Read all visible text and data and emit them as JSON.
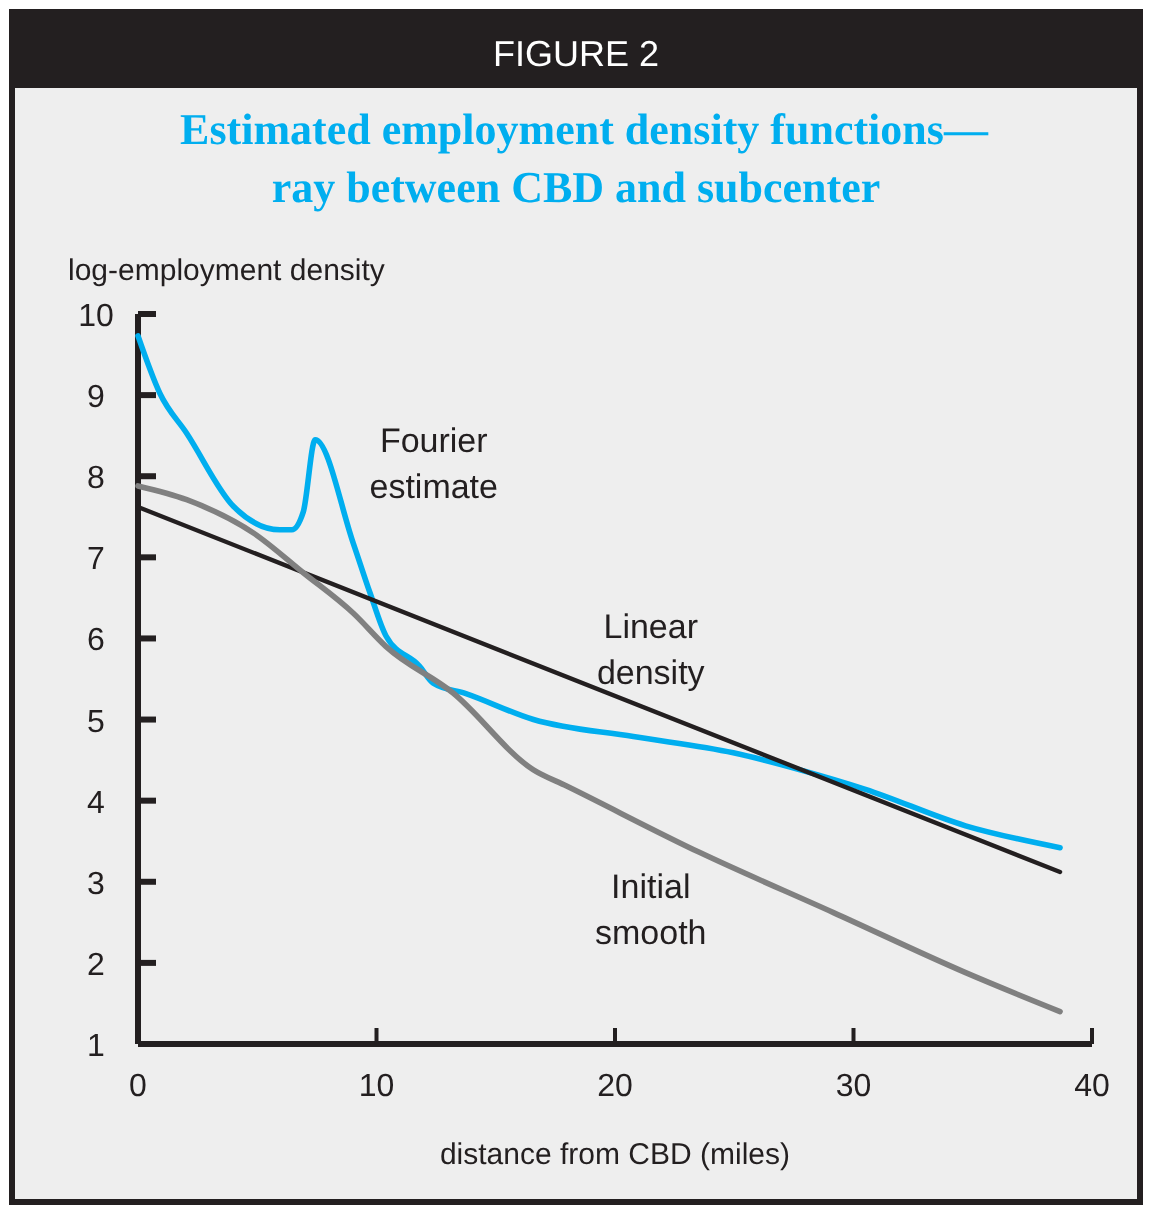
{
  "chart_data": {
    "type": "line",
    "title": "Estimated employment density functions—ray between CBD and subcenter",
    "annotations": [
      "FIGURE 2"
    ],
    "xlabel": "distance from CBD (miles)",
    "ylabel": "log-employment density",
    "xlim": [
      0,
      40
    ],
    "xticks": [
      0,
      10,
      20,
      30,
      40
    ],
    "ylim": [
      1,
      10
    ],
    "yticks": [
      1,
      2,
      3,
      4,
      5,
      6,
      7,
      8,
      9,
      10
    ],
    "grid": false,
    "legend": false,
    "line_style": "solid",
    "marker": "none",
    "series": [
      {
        "name": "Fourier estimate",
        "color": "#00aeef",
        "x": [
          0,
          0.92,
          2.04,
          4.0,
          5.95,
          6.45,
          6.93,
          7.43,
          9.03,
          9.73,
          10.4,
          11.8,
          12.38,
          13.75,
          16.58,
          20.77,
          24.96,
          27.76,
          30.5,
          34.7,
          38.66
        ],
        "values": [
          9.73,
          9.02,
          8.53,
          7.63,
          7.34,
          7.34,
          7.56,
          8.45,
          7.17,
          6.56,
          6.03,
          5.66,
          5.45,
          5.32,
          5.0,
          4.79,
          4.59,
          4.38,
          4.14,
          3.69,
          3.42
        ]
      },
      {
        "name": "Linear density",
        "color": "#231f20",
        "x": [
          0,
          38.66
        ],
        "values": [
          7.62,
          3.12
        ]
      },
      {
        "name": "Initial smooth",
        "color": "#808080",
        "x": [
          0,
          2.04,
          4.84,
          6.93,
          9.03,
          10.4,
          13.2,
          16.58,
          17.97,
          23.56,
          29.16,
          34.7,
          38.66
        ],
        "values": [
          7.88,
          7.71,
          7.3,
          6.81,
          6.31,
          5.9,
          5.33,
          4.38,
          4.18,
          3.36,
          2.62,
          1.88,
          1.4
        ]
      }
    ]
  }
}
